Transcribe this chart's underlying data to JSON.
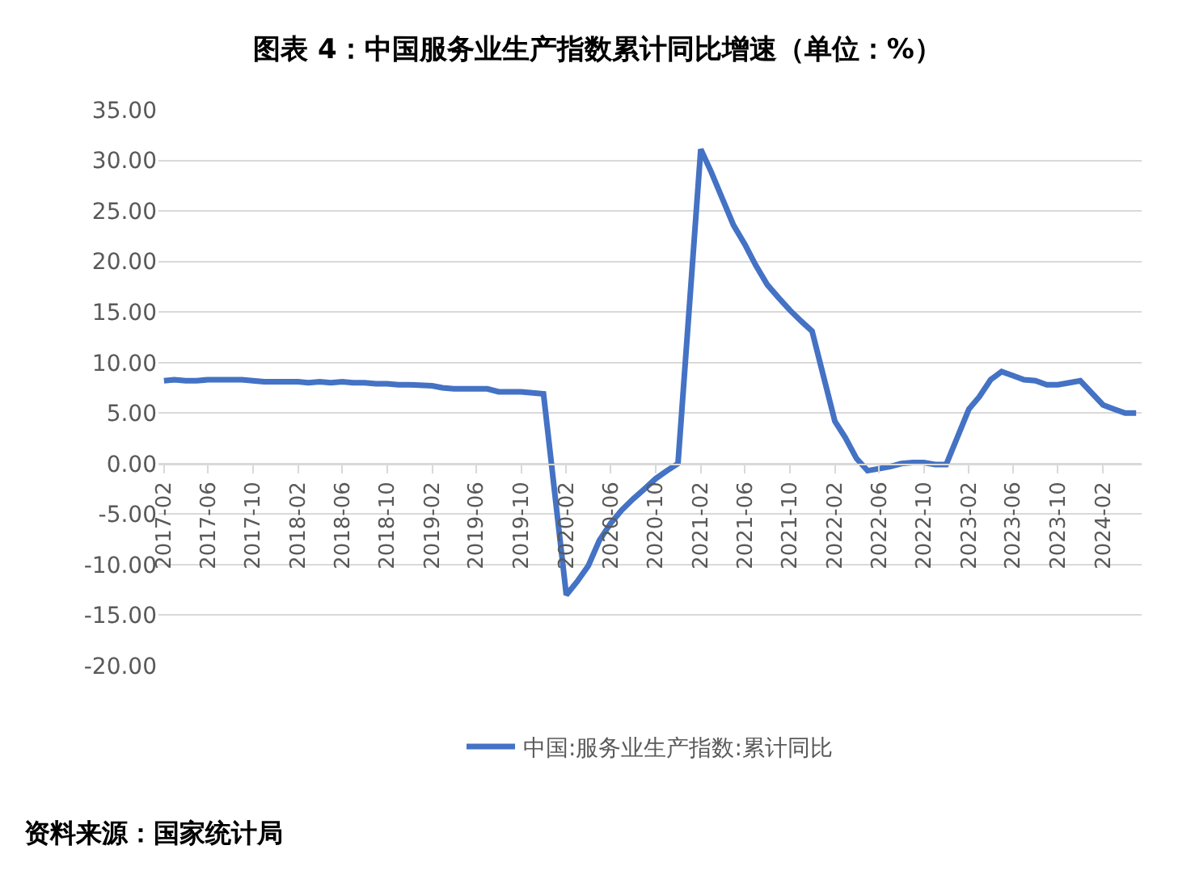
{
  "chart_data": {
    "type": "line",
    "title": "图表 4：中国服务业生产指数累计同比增速（单位：%）",
    "annotations": [
      "资料来源：国家统计局"
    ],
    "x": [
      "2017-02",
      "2017-03",
      "2017-04",
      "2017-05",
      "2017-06",
      "2017-07",
      "2017-08",
      "2017-09",
      "2017-10",
      "2017-11",
      "2017-12",
      "2018-02",
      "2018-03",
      "2018-04",
      "2018-05",
      "2018-06",
      "2018-07",
      "2018-08",
      "2018-09",
      "2018-10",
      "2018-11",
      "2018-12",
      "2019-02",
      "2019-03",
      "2019-04",
      "2019-05",
      "2019-06",
      "2019-07",
      "2019-08",
      "2019-09",
      "2019-10",
      "2019-11",
      "2019-12",
      "2020-02",
      "2020-03",
      "2020-04",
      "2020-05",
      "2020-06",
      "2020-07",
      "2020-08",
      "2020-09",
      "2020-10",
      "2020-11",
      "2020-12",
      "2021-02",
      "2021-03",
      "2021-04",
      "2021-05",
      "2021-06",
      "2021-07",
      "2021-08",
      "2021-09",
      "2021-10",
      "2021-11",
      "2021-12",
      "2022-02",
      "2022-03",
      "2022-04",
      "2022-05",
      "2022-06",
      "2022-07",
      "2022-08",
      "2022-09",
      "2022-10",
      "2022-11",
      "2022-12",
      "2023-02",
      "2023-03",
      "2023-04",
      "2023-05",
      "2023-06",
      "2023-07",
      "2023-08",
      "2023-09",
      "2023-10",
      "2023-11",
      "2023-12",
      "2024-02",
      "2024-03",
      "2024-04",
      "2024-05"
    ],
    "series": [
      {
        "name": "中国:服务业生产指数:累计同比",
        "color": "#4472c4",
        "values": [
          8.2,
          8.3,
          8.2,
          8.2,
          8.3,
          8.3,
          8.3,
          8.3,
          8.2,
          8.1,
          8.1,
          8.1,
          8.0,
          8.1,
          8.0,
          8.1,
          8.0,
          8.0,
          7.9,
          7.9,
          7.8,
          7.8,
          7.7,
          7.5,
          7.4,
          7.4,
          7.4,
          7.4,
          7.1,
          7.1,
          7.1,
          7.0,
          6.9,
          -13.0,
          -11.7,
          -10.1,
          -7.6,
          -5.9,
          -4.6,
          -3.5,
          -2.5,
          -1.5,
          -0.7,
          0.0,
          31.1,
          28.9,
          26.2,
          23.6,
          21.7,
          19.6,
          17.7,
          16.4,
          15.2,
          14.1,
          13.1,
          4.2,
          2.6,
          0.5,
          -0.7,
          -0.5,
          -0.3,
          0.0,
          0.1,
          0.1,
          -0.1,
          -0.1,
          5.4,
          6.6,
          8.3,
          9.1,
          8.7,
          8.3,
          8.2,
          7.8,
          7.8,
          8.0,
          8.2,
          5.8,
          5.4,
          5.0,
          5.0
        ]
      }
    ],
    "xlim": [
      "2017-01-17",
      "2024-05-16"
    ],
    "xticks": [
      "2017-02",
      "2017-06",
      "2017-10",
      "2018-02",
      "2018-06",
      "2018-10",
      "2019-02",
      "2019-06",
      "2019-10",
      "2020-02",
      "2020-06",
      "2020-10",
      "2021-02",
      "2021-06",
      "2021-10",
      "2022-02",
      "2022-06",
      "2022-10",
      "2023-02",
      "2023-06",
      "2023-10",
      "2024-02"
    ],
    "ylim": [
      -20,
      35
    ],
    "yticks": [
      {
        "value": 35,
        "label": "35.00"
      },
      {
        "value": 30,
        "label": "30.00"
      },
      {
        "value": 25,
        "label": "25.00"
      },
      {
        "value": 20,
        "label": "20.00"
      },
      {
        "value": 15,
        "label": "15.00"
      },
      {
        "value": 10,
        "label": "10.00"
      },
      {
        "value": 5,
        "label": "5.00"
      },
      {
        "value": 0,
        "label": "0.00"
      },
      {
        "value": -5,
        "label": "-5.00"
      },
      {
        "value": -10,
        "label": "-10.00"
      },
      {
        "value": -15,
        "label": "-15.00"
      },
      {
        "value": -20,
        "label": "-20.00"
      }
    ],
    "grid": "y",
    "legend": "bottom",
    "marker": "none",
    "line_style": "solid"
  }
}
